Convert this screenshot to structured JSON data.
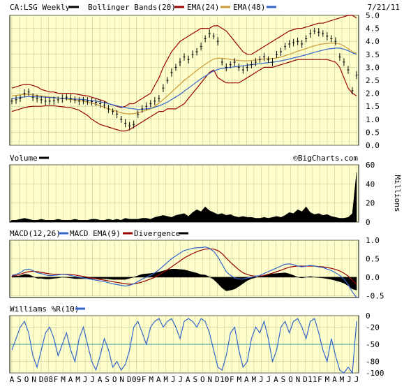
{
  "header": {
    "symbol_label": "CA:LSG Weekly",
    "bb_label": "Bollinger Bands(20)",
    "ema24_label": "EMA(24)",
    "ema48_label": "EMA(48)",
    "date": "7/21/11"
  },
  "volume": {
    "label": "Volume",
    "watermark": "©BigCharts.com",
    "unit_label": "Millions"
  },
  "macd": {
    "label": "MACD(12,26)",
    "ema_label": "MACD EMA(9)",
    "div_label": "Divergence"
  },
  "williams": {
    "label": "Williams %R(10)"
  },
  "colors": {
    "plot_bg": "#ffffcc",
    "price": "#000000",
    "bollinger": "#990000",
    "ema24": "#cc9933",
    "ema48": "#3366cc",
    "macd": "#3366cc",
    "macd_ema": "#990000",
    "williams": "#3366cc",
    "midline": "#339999",
    "grid": "#c8c8a0"
  },
  "chart_data": [
    {
      "type": "candlestick",
      "title": "CA:LSG Weekly",
      "x_ticks": [
        "A",
        "S",
        "O",
        "N",
        "D",
        "08",
        "F",
        "M",
        "A",
        "M",
        "J",
        "J",
        "A",
        "S",
        "O",
        "N",
        "D",
        "09",
        "F",
        "M",
        "A",
        "M",
        "J",
        "J",
        "A",
        "S",
        "O",
        "N",
        "D",
        "10",
        "F",
        "M",
        "A",
        "M",
        "J",
        "J",
        "A",
        "S",
        "O",
        "N",
        "D",
        "11",
        "F",
        "M",
        "A",
        "M",
        "J",
        "J"
      ],
      "y_ticks": [
        "5.0",
        "4.5",
        "4.0",
        "3.5",
        "3.0",
        "2.5",
        "2.0",
        "1.5",
        "1.0",
        "0.5",
        "0.0"
      ],
      "ylim": [
        0,
        5
      ],
      "series": [
        {
          "name": "CA:LSG Weekly",
          "values": [
            1.7,
            1.75,
            1.8,
            2.0,
            2.05,
            1.85,
            1.8,
            1.75,
            1.7,
            1.7,
            1.72,
            1.75,
            1.8,
            1.85,
            1.8,
            1.75,
            1.7,
            1.72,
            1.7,
            1.68,
            1.65,
            1.6,
            1.55,
            1.4,
            1.3,
            1.2,
            1.0,
            0.85,
            0.75,
            0.8,
            1.2,
            1.4,
            1.5,
            1.6,
            1.7,
            1.8,
            2.2,
            2.5,
            2.8,
            3.0,
            3.2,
            3.4,
            3.3,
            3.5,
            3.6,
            3.8,
            4.1,
            4.3,
            4.2,
            4.0,
            3.2,
            3.0,
            3.1,
            3.2,
            3.0,
            2.9,
            3.0,
            3.1,
            3.2,
            3.3,
            3.4,
            3.3,
            3.2,
            3.5,
            3.6,
            3.8,
            3.9,
            3.95,
            4.0,
            3.9,
            4.1,
            4.3,
            4.4,
            4.35,
            4.3,
            4.2,
            4.1,
            4.0,
            3.4,
            3.2,
            2.9,
            2.1,
            2.7
          ]
        },
        {
          "name": "Bollinger Bands(20)",
          "values": [
            2.2,
            2.25,
            2.3,
            2.35,
            2.35,
            2.3,
            2.25,
            2.15,
            2.1,
            2.05,
            2.05,
            2.0,
            2.0,
            2.0,
            2.0,
            1.98,
            1.95,
            1.92,
            1.9,
            1.85,
            1.8,
            1.75,
            1.7,
            1.6,
            1.55,
            1.5,
            1.45,
            1.5,
            1.6,
            1.6,
            1.7,
            1.8,
            1.9,
            2.0,
            2.3,
            2.6,
            3.0,
            3.3,
            3.6,
            3.8,
            4.0,
            4.1,
            4.2,
            4.3,
            4.4,
            4.5,
            4.5,
            4.5,
            4.6,
            4.6,
            4.5,
            4.4,
            4.2,
            4.0,
            3.8,
            3.6,
            3.5,
            3.5,
            3.6,
            3.7,
            3.8,
            3.9,
            4.0,
            4.1,
            4.2,
            4.3,
            4.4,
            4.45,
            4.5,
            4.5,
            4.55,
            4.6,
            4.65,
            4.7,
            4.7,
            4.75,
            4.8,
            4.85,
            4.9,
            4.95,
            5.0,
            5.0,
            4.9
          ]
        },
        {
          "name": "Bollinger Bands(20) lower",
          "values": [
            1.3,
            1.35,
            1.4,
            1.45,
            1.48,
            1.5,
            1.5,
            1.5,
            1.52,
            1.52,
            1.52,
            1.5,
            1.48,
            1.46,
            1.45,
            1.4,
            1.35,
            1.25,
            1.15,
            1.0,
            0.9,
            0.8,
            0.75,
            0.7,
            0.65,
            0.6,
            0.55,
            0.55,
            0.6,
            0.7,
            0.8,
            0.9,
            1.0,
            1.1,
            1.2,
            1.3,
            1.3,
            1.4,
            1.4,
            1.4,
            1.5,
            1.6,
            1.8,
            2.0,
            2.2,
            2.4,
            2.6,
            2.8,
            2.9,
            2.6,
            2.5,
            2.4,
            2.4,
            2.4,
            2.4,
            2.5,
            2.6,
            2.7,
            2.8,
            2.9,
            3.0,
            3.0,
            3.0,
            3.05,
            3.1,
            3.15,
            3.2,
            3.25,
            3.3,
            3.3,
            3.3,
            3.3,
            3.3,
            3.3,
            3.3,
            3.3,
            3.25,
            3.2,
            3.0,
            2.6,
            2.2,
            2.0,
            1.9
          ]
        },
        {
          "name": "EMA(24)",
          "values": [
            1.9,
            1.92,
            1.94,
            1.96,
            1.96,
            1.94,
            1.92,
            1.9,
            1.88,
            1.86,
            1.84,
            1.82,
            1.8,
            1.78,
            1.76,
            1.74,
            1.72,
            1.7,
            1.66,
            1.62,
            1.58,
            1.52,
            1.46,
            1.4,
            1.35,
            1.3,
            1.25,
            1.22,
            1.2,
            1.22,
            1.25,
            1.3,
            1.35,
            1.4,
            1.5,
            1.62,
            1.76,
            1.9,
            2.05,
            2.2,
            2.35,
            2.5,
            2.62,
            2.75,
            2.88,
            3.0,
            3.12,
            3.22,
            3.32,
            3.35,
            3.35,
            3.33,
            3.3,
            3.28,
            3.26,
            3.25,
            3.25,
            3.26,
            3.28,
            3.3,
            3.32,
            3.33,
            3.34,
            3.36,
            3.4,
            3.45,
            3.5,
            3.56,
            3.62,
            3.67,
            3.72,
            3.78,
            3.83,
            3.87,
            3.9,
            3.92,
            3.93,
            3.93,
            3.9,
            3.82,
            3.72,
            3.6,
            3.55
          ]
        },
        {
          "name": "EMA(48)",
          "values": [
            1.8,
            1.82,
            1.84,
            1.86,
            1.87,
            1.87,
            1.86,
            1.86,
            1.85,
            1.84,
            1.83,
            1.82,
            1.81,
            1.8,
            1.79,
            1.78,
            1.77,
            1.76,
            1.74,
            1.72,
            1.7,
            1.67,
            1.64,
            1.6,
            1.56,
            1.52,
            1.48,
            1.45,
            1.42,
            1.4,
            1.38,
            1.38,
            1.4,
            1.42,
            1.46,
            1.52,
            1.58,
            1.66,
            1.76,
            1.86,
            1.96,
            2.08,
            2.2,
            2.32,
            2.44,
            2.56,
            2.66,
            2.76,
            2.86,
            2.92,
            2.96,
            2.98,
            3.0,
            3.02,
            3.04,
            3.06,
            3.08,
            3.1,
            3.12,
            3.14,
            3.16,
            3.18,
            3.2,
            3.22,
            3.25,
            3.28,
            3.32,
            3.36,
            3.4,
            3.44,
            3.48,
            3.53,
            3.58,
            3.62,
            3.66,
            3.7,
            3.72,
            3.74,
            3.74,
            3.7,
            3.64,
            3.56,
            3.5
          ]
        }
      ]
    },
    {
      "type": "area",
      "title": "Volume",
      "y_ticks": [
        "60",
        "40",
        "20",
        "0"
      ],
      "ylabel": "Millions",
      "ylim": [
        0,
        60
      ],
      "series": [
        {
          "name": "Volume",
          "values": [
            2,
            2,
            3,
            4,
            3,
            2,
            2,
            3,
            2,
            2,
            2,
            3,
            2,
            2,
            2,
            3,
            2,
            2,
            2,
            3,
            3,
            2,
            2,
            3,
            2,
            3,
            2,
            4,
            3,
            3,
            3,
            4,
            4,
            3,
            5,
            6,
            7,
            6,
            5,
            7,
            8,
            9,
            6,
            10,
            13,
            11,
            16,
            12,
            10,
            8,
            9,
            7,
            8,
            6,
            5,
            6,
            5,
            5,
            4,
            4,
            5,
            4,
            5,
            6,
            5,
            7,
            10,
            9,
            13,
            11,
            16,
            10,
            8,
            9,
            7,
            8,
            6,
            5,
            4,
            4,
            5,
            9,
            52
          ]
        }
      ]
    },
    {
      "type": "line",
      "title": "MACD(12,26)",
      "y_ticks": [
        "1.0",
        "0.5",
        "0.0",
        "-0.5"
      ],
      "ylim": [
        -0.55,
        1.0
      ],
      "series": [
        {
          "name": "MACD(12,26)",
          "values": [
            0.05,
            0.08,
            0.12,
            0.2,
            0.22,
            0.18,
            0.12,
            0.1,
            0.06,
            0.04,
            0.05,
            0.06,
            0.08,
            0.07,
            0.05,
            0.02,
            0.0,
            -0.02,
            -0.04,
            -0.06,
            -0.08,
            -0.1,
            -0.12,
            -0.15,
            -0.18,
            -0.2,
            -0.22,
            -0.24,
            -0.22,
            -0.18,
            -0.12,
            -0.05,
            0.0,
            0.05,
            0.12,
            0.2,
            0.3,
            0.4,
            0.5,
            0.58,
            0.65,
            0.72,
            0.75,
            0.78,
            0.8,
            0.8,
            0.82,
            0.78,
            0.7,
            0.55,
            0.35,
            0.15,
            0.05,
            -0.02,
            -0.05,
            -0.05,
            -0.02,
            0.0,
            0.02,
            0.05,
            0.1,
            0.15,
            0.2,
            0.25,
            0.3,
            0.35,
            0.36,
            0.34,
            0.3,
            0.28,
            0.3,
            0.32,
            0.3,
            0.28,
            0.26,
            0.22,
            0.18,
            0.12,
            0.05,
            -0.05,
            -0.2,
            -0.4,
            -0.55
          ]
        },
        {
          "name": "MACD EMA(9)",
          "values": [
            0.03,
            0.05,
            0.08,
            0.12,
            0.15,
            0.16,
            0.15,
            0.13,
            0.11,
            0.09,
            0.08,
            0.08,
            0.08,
            0.08,
            0.07,
            0.06,
            0.04,
            0.02,
            0.0,
            -0.02,
            -0.04,
            -0.06,
            -0.08,
            -0.1,
            -0.12,
            -0.14,
            -0.16,
            -0.18,
            -0.19,
            -0.18,
            -0.16,
            -0.13,
            -0.09,
            -0.05,
            0.0,
            0.06,
            0.13,
            0.2,
            0.28,
            0.36,
            0.44,
            0.52,
            0.58,
            0.64,
            0.69,
            0.73,
            0.76,
            0.77,
            0.76,
            0.72,
            0.64,
            0.52,
            0.4,
            0.3,
            0.2,
            0.12,
            0.07,
            0.04,
            0.03,
            0.03,
            0.05,
            0.08,
            0.11,
            0.15,
            0.19,
            0.23,
            0.27,
            0.29,
            0.3,
            0.3,
            0.3,
            0.3,
            0.3,
            0.29,
            0.28,
            0.26,
            0.24,
            0.21,
            0.17,
            0.11,
            0.03,
            -0.08,
            -0.2
          ]
        },
        {
          "name": "Divergence",
          "values": [
            0.02,
            0.03,
            0.04,
            0.08,
            0.07,
            0.02,
            -0.03,
            -0.03,
            -0.05,
            -0.05,
            -0.03,
            -0.02,
            0.0,
            -0.01,
            -0.02,
            -0.04,
            -0.04,
            -0.04,
            -0.04,
            -0.04,
            -0.04,
            -0.04,
            -0.04,
            -0.05,
            -0.06,
            -0.06,
            -0.06,
            -0.06,
            -0.03,
            0.0,
            0.04,
            0.08,
            0.09,
            0.1,
            0.12,
            0.14,
            0.17,
            0.2,
            0.22,
            0.22,
            0.21,
            0.2,
            0.17,
            0.14,
            0.11,
            0.07,
            0.06,
            0.01,
            -0.06,
            -0.17,
            -0.29,
            -0.37,
            -0.35,
            -0.32,
            -0.25,
            -0.17,
            -0.09,
            -0.04,
            -0.01,
            0.02,
            0.05,
            0.07,
            0.09,
            0.1,
            0.11,
            0.12,
            0.09,
            0.05,
            0.0,
            -0.02,
            0.0,
            0.02,
            0.0,
            -0.01,
            -0.02,
            -0.04,
            -0.06,
            -0.09,
            -0.12,
            -0.16,
            -0.23,
            -0.32,
            -0.35
          ]
        }
      ]
    },
    {
      "type": "line",
      "title": "Williams %R(10)",
      "y_ticks": [
        "0",
        "-20",
        "-50",
        "-80",
        "-100"
      ],
      "ylim": [
        -100,
        0
      ],
      "series": [
        {
          "name": "Williams %R(10)",
          "values": [
            -60,
            -40,
            -20,
            -10,
            -30,
            -70,
            -90,
            -60,
            -30,
            -20,
            -40,
            -70,
            -50,
            -30,
            -60,
            -80,
            -40,
            -20,
            -50,
            -80,
            -95,
            -70,
            -40,
            -60,
            -90,
            -80,
            -95,
            -85,
            -60,
            -20,
            -10,
            -30,
            -50,
            -20,
            -10,
            -5,
            -20,
            -10,
            -5,
            -20,
            -40,
            -10,
            -5,
            -10,
            -20,
            -5,
            -10,
            -30,
            -60,
            -90,
            -95,
            -70,
            -30,
            -20,
            -60,
            -90,
            -80,
            -40,
            -20,
            -30,
            -10,
            -40,
            -80,
            -60,
            -20,
            -10,
            -30,
            -10,
            -5,
            -20,
            -40,
            -10,
            -5,
            -30,
            -60,
            -80,
            -40,
            -70,
            -95,
            -100,
            -90,
            -100,
            -10
          ]
        }
      ]
    }
  ]
}
